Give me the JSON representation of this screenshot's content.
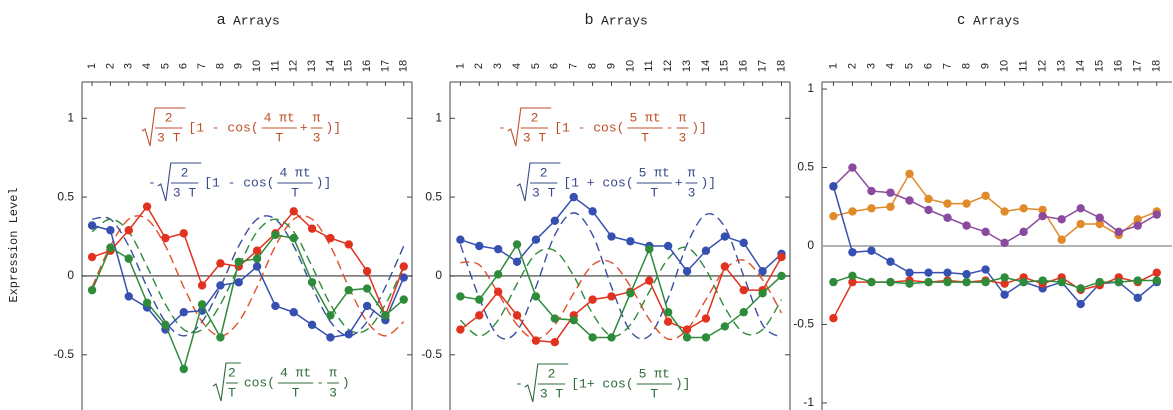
{
  "y_label": "Expression Level",
  "chart_data": [
    {
      "type": "line",
      "letter": "a",
      "title": "Arrays",
      "x": [
        1,
        2,
        3,
        4,
        5,
        6,
        7,
        8,
        9,
        10,
        11,
        12,
        13,
        14,
        15,
        16,
        17,
        18
      ],
      "xticks": [
        1,
        2,
        3,
        4,
        5,
        6,
        7,
        8,
        9,
        10,
        11,
        12,
        13,
        14,
        15,
        16,
        17,
        18
      ],
      "xlim": [
        0.45,
        18.45
      ],
      "ylim": [
        -0.85,
        1.23
      ],
      "yticks": [
        -0.5,
        0,
        0.5,
        1
      ],
      "hline": 0,
      "hline_color": "#000000",
      "series": [
        {
          "style": "dashed",
          "color": "#e0502a",
          "values": [
            -0.07,
            0.19,
            0.36,
            0.36,
            0.19,
            -0.07,
            -0.29,
            -0.38,
            -0.29,
            -0.07,
            0.19,
            0.36,
            0.36,
            0.19,
            -0.07,
            -0.29,
            -0.38,
            -0.29
          ]
        },
        {
          "style": "dashed",
          "color": "#3a4fa0",
          "values": [
            0.36,
            0.36,
            0.19,
            -0.07,
            -0.29,
            -0.38,
            -0.29,
            -0.07,
            0.19,
            0.36,
            0.36,
            0.19,
            -0.07,
            -0.29,
            -0.38,
            -0.29,
            -0.07,
            0.19
          ]
        },
        {
          "style": "dashed",
          "color": "#2e8b3a",
          "values": [
            0.28,
            0.36,
            0.28,
            0.06,
            -0.18,
            -0.34,
            -0.34,
            -0.18,
            0.06,
            0.28,
            0.36,
            0.28,
            0.06,
            -0.18,
            -0.34,
            -0.34,
            -0.18,
            0.06
          ]
        },
        {
          "style": "markers",
          "color": "#3550b0",
          "values": [
            0.32,
            0.29,
            -0.13,
            -0.2,
            -0.34,
            -0.23,
            -0.22,
            -0.06,
            -0.04,
            0.06,
            -0.19,
            -0.23,
            -0.31,
            -0.39,
            -0.37,
            -0.19,
            -0.28,
            -0.01
          ]
        },
        {
          "style": "markers",
          "color": "#e0321e",
          "values": [
            0.12,
            0.16,
            0.29,
            0.44,
            0.24,
            0.27,
            -0.06,
            0.08,
            0.06,
            0.16,
            0.27,
            0.41,
            0.3,
            0.24,
            0.2,
            0.03,
            -0.25,
            0.06
          ]
        },
        {
          "style": "markers",
          "color": "#2e8b3a",
          "values": [
            -0.09,
            0.18,
            0.11,
            -0.17,
            -0.31,
            -0.59,
            -0.18,
            -0.39,
            0.09,
            0.11,
            0.26,
            0.24,
            -0.04,
            -0.25,
            -0.09,
            -0.08,
            -0.25,
            -0.15
          ]
        }
      ],
      "annotations": [
        {
          "color": "#c0502a",
          "root": {
            "num": "2",
            "den": "3 T"
          },
          "parts": [
            "[1 - cos(",
            {
              "num": "4 πt",
              "den": "T"
            },
            "+",
            {
              "num": "π",
              "den": "3"
            },
            ")]"
          ]
        },
        {
          "color": "#3a4a8a",
          "sign": "-",
          "root": {
            "num": "2",
            "den": "3 T"
          },
          "parts": [
            "[1 - cos(",
            {
              "num": "4 πt",
              "den": "T"
            },
            ")]"
          ]
        },
        {
          "color": "#2e6b3a",
          "root": {
            "num": "2",
            "den": "T"
          },
          "parts": [
            "cos(",
            {
              "num": "4 πt",
              "den": "T"
            },
            "-",
            {
              "num": "π",
              "den": "3"
            },
            ")"
          ]
        }
      ]
    },
    {
      "type": "line",
      "letter": "b",
      "title": "Arrays",
      "x": [
        1,
        2,
        3,
        4,
        5,
        6,
        7,
        8,
        9,
        10,
        11,
        12,
        13,
        14,
        15,
        16,
        17,
        18
      ],
      "xticks": [
        1,
        2,
        3,
        4,
        5,
        6,
        7,
        8,
        9,
        10,
        11,
        12,
        13,
        14,
        15,
        16,
        17,
        18
      ],
      "xlim": [
        0.45,
        18.45
      ],
      "ylim": [
        -0.85,
        1.23
      ],
      "yticks": [
        -0.5,
        0,
        0.5,
        1
      ],
      "hline": 0,
      "hline_color": "#000000",
      "series": [
        {
          "style": "dashed",
          "color": "#3a4fa0",
          "values": [
            0.2,
            -0.14,
            -0.38,
            -0.35,
            -0.07,
            0.26,
            0.4,
            0.26,
            -0.07,
            -0.35,
            -0.38,
            -0.14,
            0.2,
            0.39,
            0.31,
            0,
            -0.31,
            -0.39
          ]
        },
        {
          "style": "dashed",
          "color": "#e0502a",
          "values": [
            0.085,
            0.07,
            -0.11,
            -0.31,
            -0.4,
            -0.31,
            -0.11,
            0.07,
            0.085,
            -0.065,
            -0.275,
            -0.4,
            -0.34,
            -0.15,
            0.04,
            0.1,
            -0.025,
            -0.235
          ]
        },
        {
          "style": "dashed",
          "color": "#2e8b3a",
          "values": [
            -0.28,
            -0.38,
            -0.28,
            -0.05,
            0.14,
            0.16,
            0,
            -0.24,
            -0.38,
            -0.31,
            -0.1,
            0.11,
            0.18,
            0.04,
            -0.2,
            -0.36,
            -0.34,
            -0.15
          ]
        },
        {
          "style": "markers",
          "color": "#3550b0",
          "values": [
            0.23,
            0.19,
            0.17,
            0.09,
            0.23,
            0.35,
            0.5,
            0.41,
            0.25,
            0.22,
            0.19,
            0.19,
            0.03,
            0.16,
            0.25,
            0.21,
            0.03,
            0.14
          ]
        },
        {
          "style": "markers",
          "color": "#e0321e",
          "values": [
            -0.34,
            -0.25,
            -0.1,
            -0.25,
            -0.41,
            -0.42,
            -0.25,
            -0.15,
            -0.13,
            -0.1,
            -0.03,
            -0.29,
            -0.34,
            -0.27,
            0.06,
            -0.09,
            -0.09,
            0.12
          ]
        },
        {
          "style": "markers",
          "color": "#2e8b3a",
          "values": [
            -0.13,
            -0.15,
            0.01,
            0.2,
            -0.13,
            -0.27,
            -0.28,
            -0.39,
            -0.39,
            -0.11,
            0.17,
            -0.23,
            -0.39,
            -0.39,
            -0.32,
            -0.23,
            -0.11,
            0
          ]
        }
      ],
      "annotations": [
        {
          "color": "#c0502a",
          "sign": "-",
          "root": {
            "num": "2",
            "den": "3 T"
          },
          "parts": [
            "[1 - cos(",
            {
              "num": "5 πt",
              "den": "T"
            },
            "-",
            {
              "num": "π",
              "den": "3"
            },
            ")]"
          ]
        },
        {
          "color": "#3a4a8a",
          "root": {
            "num": "2",
            "den": "3 T"
          },
          "parts": [
            "[1 + cos(",
            {
              "num": "5 πt",
              "den": "T"
            },
            "+",
            {
              "num": "π",
              "den": "3"
            },
            ")]"
          ]
        },
        {
          "color": "#2e6b3a",
          "sign": "-",
          "root": {
            "num": "2",
            "den": "3 T"
          },
          "parts": [
            "[1+ cos(",
            {
              "num": "5 πt",
              "den": "T"
            },
            ")]"
          ]
        }
      ]
    },
    {
      "type": "line",
      "letter": "c",
      "title": "Arrays",
      "x": [
        1,
        2,
        3,
        4,
        5,
        6,
        7,
        8,
        9,
        10,
        11,
        12,
        13,
        14,
        15,
        16,
        17,
        18
      ],
      "xticks": [
        1,
        2,
        3,
        4,
        5,
        6,
        7,
        8,
        9,
        10,
        11,
        12,
        13,
        14,
        15,
        16,
        17,
        18
      ],
      "xlim": [
        0.4,
        18.8
      ],
      "ylim": [
        -1.045,
        1.045
      ],
      "yticks": [
        -1,
        -0.5,
        0,
        0.5,
        1
      ],
      "hline": 0,
      "hline_color": "#9a9a9a",
      "series": [
        {
          "style": "markers",
          "color": "#e08a2a",
          "values": [
            0.19,
            0.22,
            0.24,
            0.25,
            0.46,
            0.3,
            0.27,
            0.27,
            0.32,
            0.22,
            0.24,
            0.23,
            0.04,
            0.14,
            0.14,
            0.07,
            0.17,
            0.22
          ]
        },
        {
          "style": "markers",
          "color": "#8a4a9e",
          "values": [
            0.38,
            0.5,
            0.35,
            0.34,
            0.29,
            0.23,
            0.18,
            0.13,
            0.09,
            0.02,
            0.09,
            0.19,
            0.17,
            0.24,
            0.18,
            0.09,
            0.13,
            0.2
          ]
        },
        {
          "style": "markers",
          "color": "#3550b0",
          "values": [
            0.38,
            -0.04,
            -0.03,
            -0.1,
            -0.17,
            -0.17,
            -0.17,
            -0.18,
            -0.15,
            -0.31,
            -0.23,
            -0.27,
            -0.23,
            -0.37,
            -0.24,
            -0.23,
            -0.33,
            -0.23
          ]
        },
        {
          "style": "markers",
          "color": "#e0321e",
          "values": [
            -0.46,
            -0.23,
            -0.23,
            -0.23,
            -0.22,
            -0.23,
            -0.22,
            -0.23,
            -0.22,
            -0.24,
            -0.2,
            -0.24,
            -0.2,
            -0.28,
            -0.25,
            -0.2,
            -0.23,
            -0.17
          ]
        },
        {
          "style": "markers",
          "color": "#2e8b3a",
          "values": [
            -0.23,
            -0.19,
            -0.23,
            -0.23,
            -0.24,
            -0.23,
            -0.23,
            -0.23,
            -0.23,
            -0.2,
            -0.23,
            -0.22,
            -0.23,
            -0.27,
            -0.23,
            -0.23,
            -0.22,
            -0.22
          ]
        }
      ]
    }
  ]
}
